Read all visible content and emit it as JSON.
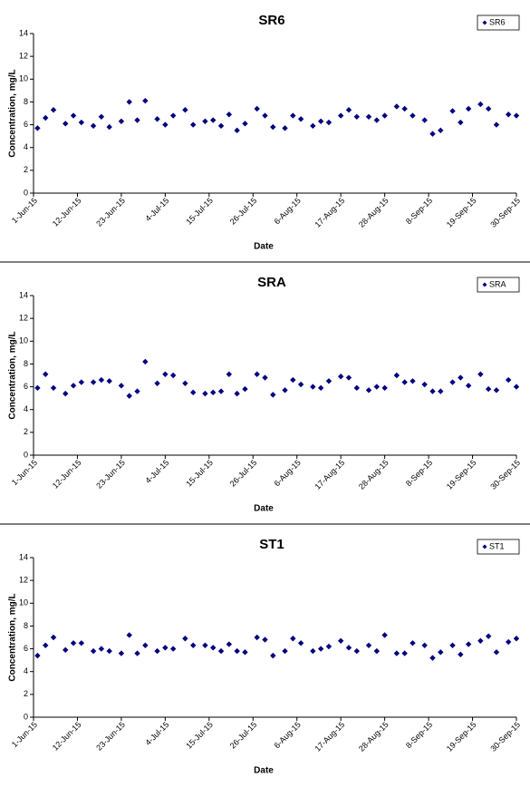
{
  "chart_data": [
    {
      "type": "scatter",
      "title": "SR6",
      "xlabel": "Date",
      "ylabel": "Concentration, mg/L",
      "legend": "upper right",
      "xlim": [
        "2015-06-01",
        "2015-09-30"
      ],
      "xticks": [
        {
          "value": "2015-06-01",
          "label": "1-Jun-15"
        },
        {
          "value": "2015-06-12",
          "label": "12-Jun-15"
        },
        {
          "value": "2015-06-23",
          "label": "23-Jun-15"
        },
        {
          "value": "2015-07-04",
          "label": "4-Jul-15"
        },
        {
          "value": "2015-07-15",
          "label": "15-Jul-15"
        },
        {
          "value": "2015-07-26",
          "label": "26-Jul-15"
        },
        {
          "value": "2015-08-06",
          "label": "6-Aug-15"
        },
        {
          "value": "2015-08-17",
          "label": "17-Aug-15"
        },
        {
          "value": "2015-08-28",
          "label": "28-Aug-15"
        },
        {
          "value": "2015-09-08",
          "label": "8-Sep-15"
        },
        {
          "value": "2015-09-19",
          "label": "19-Sep-15"
        },
        {
          "value": "2015-09-30",
          "label": "30-Sep-15"
        }
      ],
      "ylim": [
        0,
        14
      ],
      "yticks": [
        0,
        2,
        4,
        6,
        8,
        10,
        12,
        14
      ],
      "series": [
        {
          "name": "SR6",
          "color": "#000080",
          "x": [
            "2015-06-02",
            "2015-06-04",
            "2015-06-06",
            "2015-06-09",
            "2015-06-11",
            "2015-06-13",
            "2015-06-16",
            "2015-06-18",
            "2015-06-20",
            "2015-06-23",
            "2015-06-25",
            "2015-06-27",
            "2015-06-29",
            "2015-07-02",
            "2015-07-04",
            "2015-07-06",
            "2015-07-09",
            "2015-07-11",
            "2015-07-14",
            "2015-07-16",
            "2015-07-18",
            "2015-07-20",
            "2015-07-22",
            "2015-07-24",
            "2015-07-27",
            "2015-07-29",
            "2015-07-31",
            "2015-08-03",
            "2015-08-05",
            "2015-08-07",
            "2015-08-10",
            "2015-08-12",
            "2015-08-14",
            "2015-08-17",
            "2015-08-19",
            "2015-08-21",
            "2015-08-24",
            "2015-08-26",
            "2015-08-28",
            "2015-08-31",
            "2015-09-02",
            "2015-09-04",
            "2015-09-07",
            "2015-09-09",
            "2015-09-11",
            "2015-09-14",
            "2015-09-16",
            "2015-09-18",
            "2015-09-21",
            "2015-09-23",
            "2015-09-25",
            "2015-09-28",
            "2015-09-30"
          ],
          "values": [
            5.7,
            6.6,
            7.3,
            6.1,
            6.8,
            6.2,
            5.9,
            6.7,
            5.8,
            6.3,
            8.0,
            6.4,
            8.1,
            6.5,
            6.0,
            6.8,
            7.3,
            6.0,
            6.3,
            6.4,
            5.9,
            6.9,
            5.5,
            6.1,
            7.4,
            6.8,
            5.8,
            5.7,
            6.8,
            6.5,
            5.9,
            6.3,
            6.2,
            6.8,
            7.3,
            6.7,
            6.7,
            6.4,
            6.8,
            7.6,
            7.4,
            6.8,
            6.4,
            5.2,
            5.5,
            7.2,
            6.2,
            7.4,
            7.8,
            7.4,
            6.0,
            6.9,
            6.8
          ]
        }
      ]
    },
    {
      "type": "scatter",
      "title": "SRA",
      "xlabel": "Date",
      "ylabel": "Concentration, mg/L",
      "legend": "upper right",
      "xlim": [
        "2015-06-01",
        "2015-09-30"
      ],
      "xticks": [
        {
          "value": "2015-06-01",
          "label": "1-Jun-15"
        },
        {
          "value": "2015-06-12",
          "label": "12-Jun-15"
        },
        {
          "value": "2015-06-23",
          "label": "23-Jun-15"
        },
        {
          "value": "2015-07-04",
          "label": "4-Jul-15"
        },
        {
          "value": "2015-07-15",
          "label": "15-Jul-15"
        },
        {
          "value": "2015-07-26",
          "label": "26-Jul-15"
        },
        {
          "value": "2015-08-06",
          "label": "6-Aug-15"
        },
        {
          "value": "2015-08-17",
          "label": "17-Aug-15"
        },
        {
          "value": "2015-08-28",
          "label": "28-Aug-15"
        },
        {
          "value": "2015-09-08",
          "label": "8-Sep-15"
        },
        {
          "value": "2015-09-19",
          "label": "19-Sep-15"
        },
        {
          "value": "2015-09-30",
          "label": "30-Sep-15"
        }
      ],
      "ylim": [
        0,
        14
      ],
      "yticks": [
        0,
        2,
        4,
        6,
        8,
        10,
        12,
        14
      ],
      "series": [
        {
          "name": "SRA",
          "color": "#000080",
          "x": [
            "2015-06-02",
            "2015-06-04",
            "2015-06-06",
            "2015-06-09",
            "2015-06-11",
            "2015-06-13",
            "2015-06-16",
            "2015-06-18",
            "2015-06-20",
            "2015-06-23",
            "2015-06-25",
            "2015-06-27",
            "2015-06-29",
            "2015-07-02",
            "2015-07-04",
            "2015-07-06",
            "2015-07-09",
            "2015-07-11",
            "2015-07-14",
            "2015-07-16",
            "2015-07-18",
            "2015-07-20",
            "2015-07-22",
            "2015-07-24",
            "2015-07-27",
            "2015-07-29",
            "2015-07-31",
            "2015-08-03",
            "2015-08-05",
            "2015-08-07",
            "2015-08-10",
            "2015-08-12",
            "2015-08-14",
            "2015-08-17",
            "2015-08-19",
            "2015-08-21",
            "2015-08-24",
            "2015-08-26",
            "2015-08-28",
            "2015-08-31",
            "2015-09-02",
            "2015-09-04",
            "2015-09-07",
            "2015-09-09",
            "2015-09-11",
            "2015-09-14",
            "2015-09-16",
            "2015-09-18",
            "2015-09-21",
            "2015-09-23",
            "2015-09-25",
            "2015-09-28",
            "2015-09-30"
          ],
          "values": [
            5.9,
            7.1,
            5.9,
            5.4,
            6.1,
            6.4,
            6.4,
            6.6,
            6.5,
            6.1,
            5.2,
            5.6,
            8.2,
            6.3,
            7.1,
            7.0,
            6.3,
            5.5,
            5.4,
            5.5,
            5.6,
            7.1,
            5.4,
            5.8,
            7.1,
            6.8,
            5.3,
            5.7,
            6.6,
            6.2,
            6.0,
            5.9,
            6.5,
            6.9,
            6.8,
            5.9,
            5.7,
            6.0,
            5.9,
            7.0,
            6.4,
            6.5,
            6.2,
            5.6,
            5.6,
            6.4,
            6.8,
            6.1,
            7.1,
            5.8,
            5.7,
            6.6,
            6.0
          ]
        }
      ]
    },
    {
      "type": "scatter",
      "title": "ST1",
      "xlabel": "Date",
      "ylabel": "Concentration, mg/L",
      "legend": "upper right",
      "xlim": [
        "2015-06-01",
        "2015-09-30"
      ],
      "xticks": [
        {
          "value": "2015-06-01",
          "label": "1-Jun-15"
        },
        {
          "value": "2015-06-12",
          "label": "12-Jun-15"
        },
        {
          "value": "2015-06-23",
          "label": "23-Jun-15"
        },
        {
          "value": "2015-07-04",
          "label": "4-Jul-15"
        },
        {
          "value": "2015-07-15",
          "label": "15-Jul-15"
        },
        {
          "value": "2015-07-26",
          "label": "26-Jul-15"
        },
        {
          "value": "2015-08-06",
          "label": "6-Aug-15"
        },
        {
          "value": "2015-08-17",
          "label": "17-Aug-15"
        },
        {
          "value": "2015-08-28",
          "label": "28-Aug-15"
        },
        {
          "value": "2015-09-08",
          "label": "8-Sep-15"
        },
        {
          "value": "2015-09-19",
          "label": "19-Sep-15"
        },
        {
          "value": "2015-09-30",
          "label": "30-Sep-15"
        }
      ],
      "ylim": [
        0,
        14
      ],
      "yticks": [
        0,
        2,
        4,
        6,
        8,
        10,
        12,
        14
      ],
      "series": [
        {
          "name": "ST1",
          "color": "#000080",
          "x": [
            "2015-06-02",
            "2015-06-04",
            "2015-06-06",
            "2015-06-09",
            "2015-06-11",
            "2015-06-13",
            "2015-06-16",
            "2015-06-18",
            "2015-06-20",
            "2015-06-23",
            "2015-06-25",
            "2015-06-27",
            "2015-06-29",
            "2015-07-02",
            "2015-07-04",
            "2015-07-06",
            "2015-07-09",
            "2015-07-11",
            "2015-07-14",
            "2015-07-16",
            "2015-07-18",
            "2015-07-20",
            "2015-07-22",
            "2015-07-24",
            "2015-07-27",
            "2015-07-29",
            "2015-07-31",
            "2015-08-03",
            "2015-08-05",
            "2015-08-07",
            "2015-08-10",
            "2015-08-12",
            "2015-08-14",
            "2015-08-17",
            "2015-08-19",
            "2015-08-21",
            "2015-08-24",
            "2015-08-26",
            "2015-08-28",
            "2015-08-31",
            "2015-09-02",
            "2015-09-04",
            "2015-09-07",
            "2015-09-09",
            "2015-09-11",
            "2015-09-14",
            "2015-09-16",
            "2015-09-18",
            "2015-09-21",
            "2015-09-23",
            "2015-09-25",
            "2015-09-28",
            "2015-09-30"
          ],
          "values": [
            5.4,
            6.3,
            7.0,
            5.9,
            6.5,
            6.5,
            5.8,
            6.0,
            5.8,
            5.6,
            7.2,
            5.6,
            6.3,
            5.8,
            6.1,
            6.0,
            6.9,
            6.3,
            6.3,
            6.1,
            5.8,
            6.4,
            5.8,
            5.7,
            7.0,
            6.8,
            5.4,
            5.8,
            6.9,
            6.5,
            5.8,
            6.0,
            6.2,
            6.7,
            6.1,
            5.8,
            6.3,
            5.8,
            7.2,
            5.6,
            5.6,
            6.5,
            6.3,
            5.2,
            5.7,
            6.3,
            5.5,
            6.4,
            6.7,
            7.1,
            5.7,
            6.6,
            6.9
          ]
        }
      ]
    }
  ]
}
